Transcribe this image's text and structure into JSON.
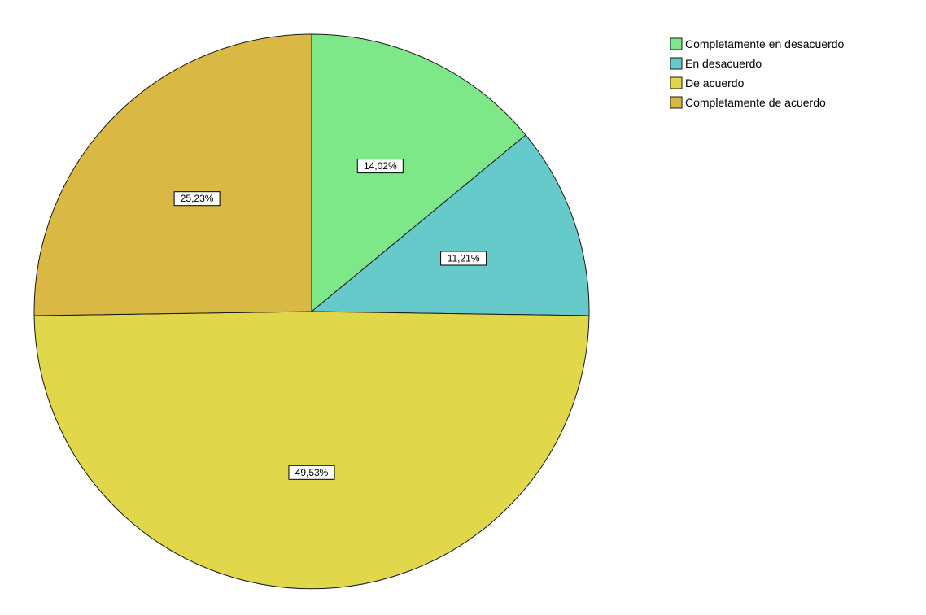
{
  "chart_data": {
    "type": "pie",
    "start_angle": "12 o'clock",
    "direction": "clockwise",
    "legend_position": "top-right",
    "slices": [
      {
        "label": "Completamente en desacuerdo",
        "value": 14.02,
        "display": "14,02%",
        "color": "#7ee787"
      },
      {
        "label": "En desacuerdo",
        "value": 11.21,
        "display": "11,21%",
        "color": "#66cacb"
      },
      {
        "label": "De acuerdo",
        "value": 49.53,
        "display": "49,53%",
        "color": "#e0d74a"
      },
      {
        "label": "Completamente de acuerdo",
        "value": 25.23,
        "display": "25,23%",
        "color": "#d9b944"
      }
    ]
  }
}
